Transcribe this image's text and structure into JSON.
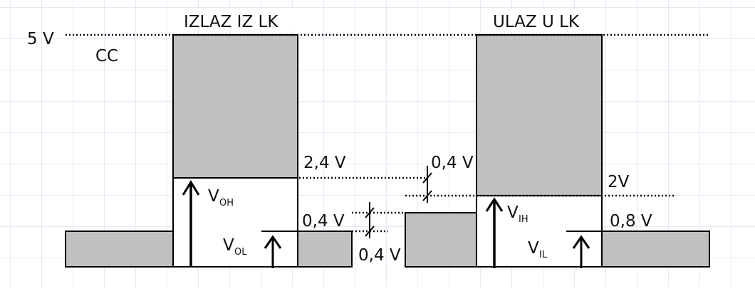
{
  "colors": {
    "grid": "#c9d6ec",
    "fill": "#c0c0c0",
    "stroke": "#000000",
    "background": "#ffffff"
  },
  "labels": {
    "vcc_value": "5 V",
    "vcc_sub": "CC",
    "output_title": "IZLAZ IZ LK",
    "input_title": "ULAZ U LK",
    "voh_level": "2,4 V",
    "vol_level": "0,4 V",
    "vih_level": "2V",
    "vil_level": "0,8 V",
    "margin_high": "0,4 V",
    "margin_low": "0,4 V",
    "voh_main": "V",
    "voh_sub": "OH",
    "vol_main": "V",
    "vol_sub": "OL",
    "vih_main": "V",
    "vih_sub": "IH",
    "vil_main": "V",
    "vil_sub": "IL"
  }
}
